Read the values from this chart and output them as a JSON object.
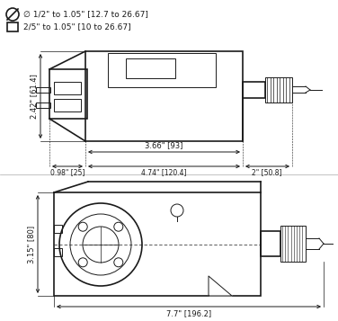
{
  "bg_color": "#ffffff",
  "line_color": "#1a1a1a",
  "legend_circle_label": "∅ 1/2\" to 1.05\" [12.7 to 26.67]",
  "legend_square_label": "2/5\" to 1.05\" [10 to 26.67]",
  "dim_height_top": "2.42\" [61.4]",
  "dim_366": "3.66\" [93]",
  "dim_098": "0.98\" [25]",
  "dim_474": "4.74\" [120.4]",
  "dim_2": "2\" [50.8]",
  "dim_height_bot": "3.15\" [80]",
  "dim_77": "7.7\" [196.2]"
}
